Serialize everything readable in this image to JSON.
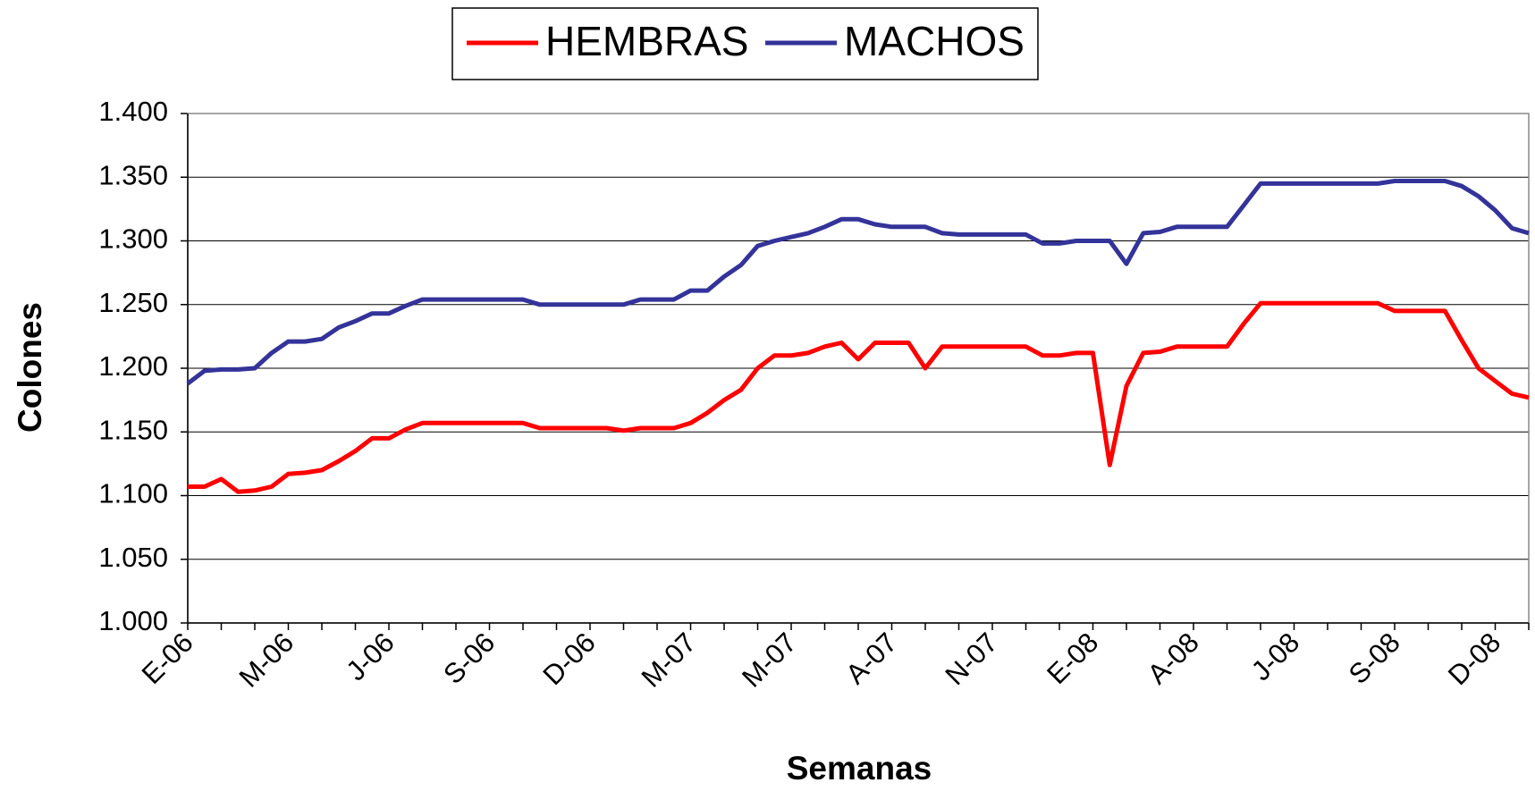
{
  "chart_data": {
    "type": "line",
    "x_label": "Semanas",
    "y_label": "Colones",
    "categories": [
      "E-06",
      null,
      null,
      null,
      null,
      null,
      "M-06",
      null,
      null,
      null,
      null,
      null,
      "J-06",
      null,
      null,
      null,
      null,
      null,
      "S-06",
      null,
      null,
      null,
      null,
      null,
      "D-06",
      null,
      null,
      null,
      null,
      null,
      "M-07",
      null,
      null,
      null,
      null,
      null,
      "M-07",
      null,
      null,
      null,
      null,
      null,
      "A-07",
      null,
      null,
      null,
      null,
      null,
      "N-07",
      null,
      null,
      null,
      null,
      null,
      "E-08",
      null,
      null,
      null,
      null,
      null,
      "A-08",
      null,
      null,
      null,
      null,
      null,
      "J-08",
      null,
      null,
      null,
      null,
      null,
      "S-08",
      null,
      null,
      null,
      null,
      null,
      "D-08",
      null,
      null
    ],
    "series": [
      {
        "name": "HEMBRAS",
        "color": "#ff0000",
        "values": [
          1107,
          1107,
          1113,
          1103,
          1104,
          1107,
          1117,
          1118,
          1120,
          1127,
          1135,
          1145,
          1145,
          1152,
          1157,
          1157,
          1157,
          1157,
          1157,
          1157,
          1157,
          1153,
          1153,
          1153,
          1153,
          1153,
          1151,
          1153,
          1153,
          1153,
          1157,
          1165,
          1175,
          1183,
          1200,
          1210,
          1210,
          1212,
          1217,
          1220,
          1207,
          1220,
          1220,
          1220,
          1200,
          1217,
          1217,
          1217,
          1217,
          1217,
          1217,
          1210,
          1210,
          1212,
          1212,
          1124,
          1186,
          1212,
          1213,
          1217,
          1217,
          1217,
          1217,
          1235,
          1251,
          1251,
          1251,
          1251,
          1251,
          1251,
          1251,
          1251,
          1245,
          1245,
          1245,
          1245,
          1222,
          1200,
          1190,
          1180,
          1177
        ]
      },
      {
        "name": "MACHOS",
        "color": "#333399",
        "values": [
          1188,
          1198,
          1199,
          1199,
          1200,
          1212,
          1221,
          1221,
          1223,
          1232,
          1237,
          1243,
          1243,
          1249,
          1254,
          1254,
          1254,
          1254,
          1254,
          1254,
          1254,
          1250,
          1250,
          1250,
          1250,
          1250,
          1250,
          1254,
          1254,
          1254,
          1261,
          1261,
          1272,
          1281,
          1296,
          1300,
          1303,
          1306,
          1311,
          1317,
          1317,
          1313,
          1311,
          1311,
          1311,
          1306,
          1305,
          1305,
          1305,
          1305,
          1305,
          1298,
          1298,
          1300,
          1300,
          1300,
          1282,
          1306,
          1307,
          1311,
          1311,
          1311,
          1311,
          1328,
          1345,
          1345,
          1345,
          1345,
          1345,
          1345,
          1345,
          1345,
          1347,
          1347,
          1347,
          1347,
          1343,
          1335,
          1324,
          1310,
          1306
        ]
      }
    ],
    "ylim": [
      1000,
      1400
    ],
    "yticks": [
      {
        "value": 1000,
        "label": "1.000"
      },
      {
        "value": 1050,
        "label": "1.050"
      },
      {
        "value": 1100,
        "label": "1.100"
      },
      {
        "value": 1150,
        "label": "1.150"
      },
      {
        "value": 1200,
        "label": "1.200"
      },
      {
        "value": 1250,
        "label": "1.250"
      },
      {
        "value": 1300,
        "label": "1.300"
      },
      {
        "value": 1350,
        "label": "1.350"
      },
      {
        "value": 1400,
        "label": "1.400"
      }
    ],
    "grid": true,
    "legend": "top"
  }
}
